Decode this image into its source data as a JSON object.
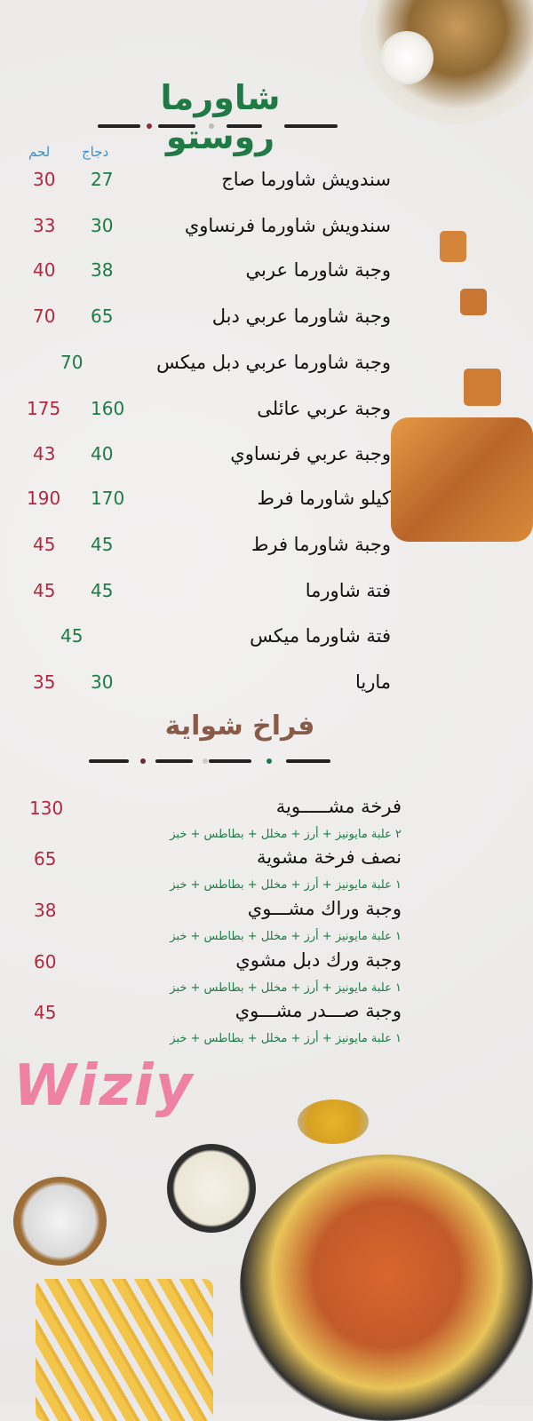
{
  "section1": {
    "title": "شاورما روستو",
    "col_chicken": "دجاج",
    "col_meat": "لحم",
    "items": [
      {
        "name": "سندويش شاورما صاج",
        "chicken": "27",
        "meat": "30"
      },
      {
        "name": "سندويش شاورما فرنساوي",
        "chicken": "30",
        "meat": "33"
      },
      {
        "name": "وجبة شاورما عربي",
        "chicken": "38",
        "meat": "40"
      },
      {
        "name": "وجبة شاورما عربي دبل",
        "chicken": "65",
        "meat": "70"
      },
      {
        "name": "وجبة شاورما عربي دبل ميكس",
        "chicken": "70",
        "meat": null
      },
      {
        "name": "وجبة عربي عائلى",
        "chicken": "160",
        "meat": "175"
      },
      {
        "name": "وجبة عربي فرنساوي",
        "chicken": "40",
        "meat": "43"
      },
      {
        "name": "كيلو شاورما فرط",
        "chicken": "170",
        "meat": "190"
      },
      {
        "name": "وجبة شاورما فرط",
        "chicken": "45",
        "meat": "45"
      },
      {
        "name": "فتة شاورما",
        "chicken": "45",
        "meat": "45"
      },
      {
        "name": "فتة شاورما ميكس",
        "chicken": "45",
        "meat": null
      },
      {
        "name": "ماريا",
        "chicken": "30",
        "meat": "35"
      }
    ]
  },
  "section2": {
    "title": "فراخ شواية",
    "items": [
      {
        "name": "فرخة مشـــــوية",
        "price": "130",
        "sides": "٢ علبة مايونيز + أرز + مخلل + بطاطس + خبز"
      },
      {
        "name": "نصف فرخة مشوية",
        "price": "65",
        "sides": "١ علبة مايونيز + أرز + مخلل + بطاطس + خبز"
      },
      {
        "name": "وجبة وراك مشـــوي",
        "price": "38",
        "sides": "١ علبة مايونيز + أرز + مخلل + بطاطس + خبز"
      },
      {
        "name": "وجبة ورك دبل مشوي",
        "price": "60",
        "sides": "١ علبة مايونيز + أرز + مخلل + بطاطس + خبز"
      },
      {
        "name": "وجبة صـــدر مشـــوي",
        "price": "45",
        "sides": "١ علبة مايونيز + أرز + مخلل + بطاطس + خبز"
      }
    ]
  },
  "watermark": "Wiziy",
  "colors": {
    "green": "#1f7a45",
    "red": "#b3283f",
    "blue": "#3b8fc9",
    "brown": "#8a5a48"
  }
}
